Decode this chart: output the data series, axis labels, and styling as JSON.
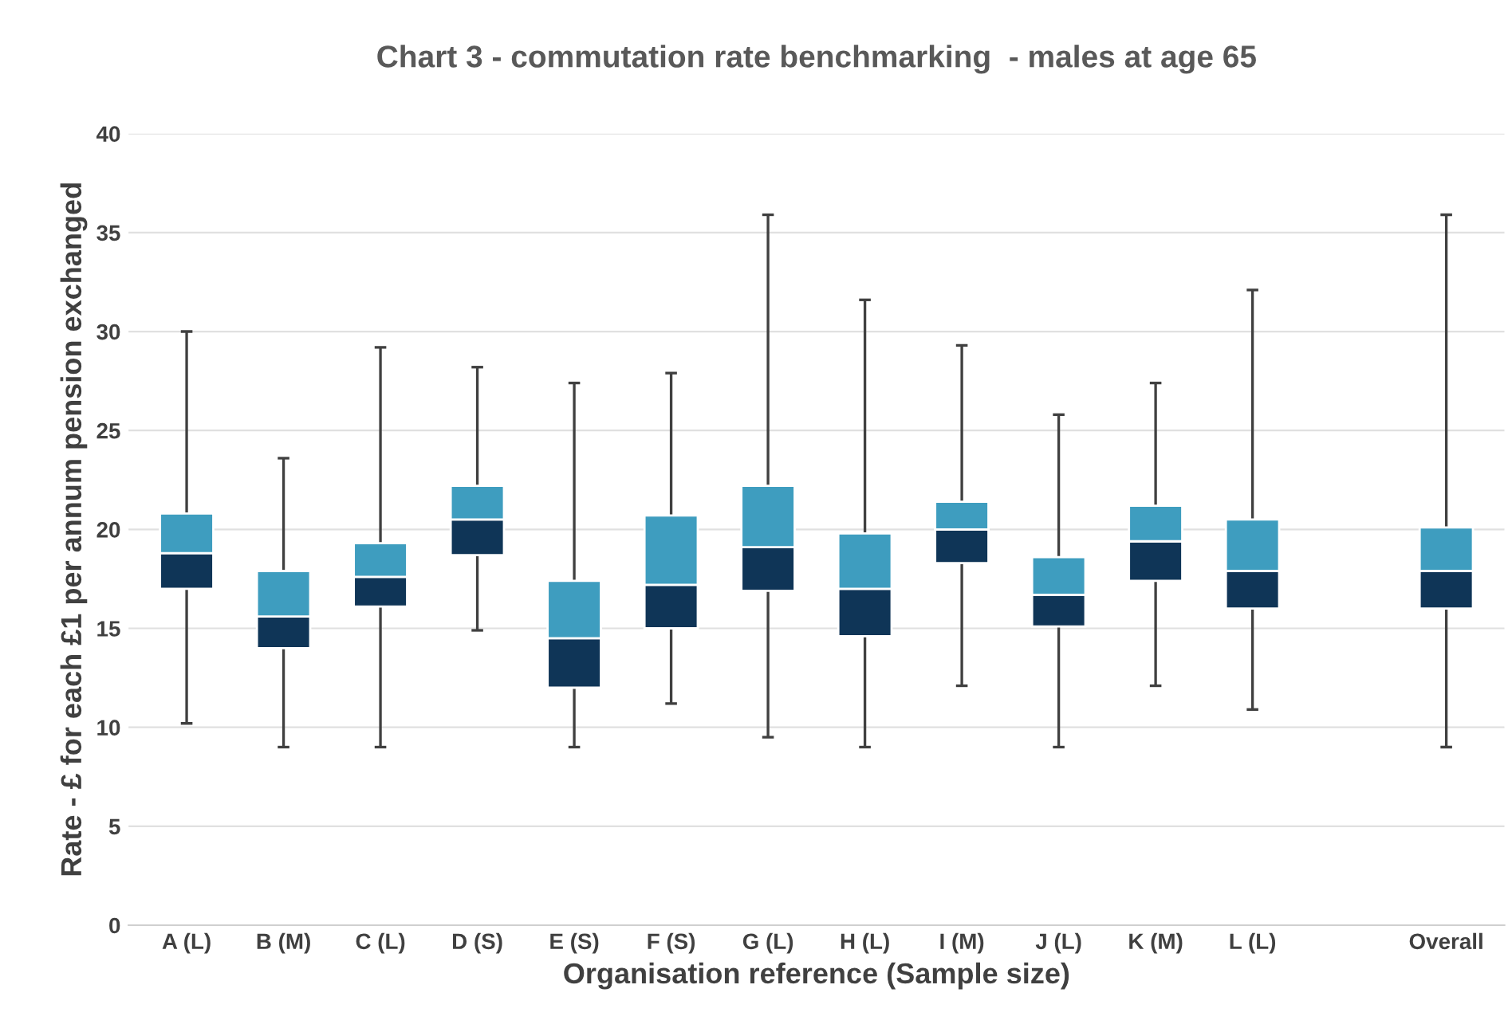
{
  "chart_data": {
    "type": "box",
    "title": "Chart 3 - commutation rate benchmarking  - males at age 65",
    "xlabel": "Organisation reference (Sample size)",
    "ylabel": "Rate - £ for each £1 per annum pension exchanged",
    "categories": [
      "A (L)",
      "B (M)",
      "C (L)",
      "D (S)",
      "E (S)",
      "F (S)",
      "G (L)",
      "H (L)",
      "I (M)",
      "J (L)",
      "K (M)",
      "L (L)",
      null,
      "Overall"
    ],
    "color": "#3e9dbf",
    "colors": [
      "#0f3557",
      "#0f3557",
      "#0f3557",
      "#0f3557",
      "#0f3557",
      "#0f3557",
      "#0f3557",
      "#0f3557",
      "#0f3557",
      "#0f3557",
      "#0f3557",
      "#0f3557",
      null,
      "#0f3557"
    ],
    "boxes": [
      {
        "low": 10.2,
        "q1": 17.0,
        "median": 18.8,
        "q3": 20.8,
        "high": 30.0
      },
      {
        "low": 9.0,
        "q1": 14.0,
        "median": 15.6,
        "q3": 17.9,
        "high": 23.6
      },
      {
        "low": 9.0,
        "q1": 16.1,
        "median": 17.6,
        "q3": 19.3,
        "high": 29.2
      },
      {
        "low": 14.9,
        "q1": 18.7,
        "median": 20.5,
        "q3": 22.2,
        "high": 28.2
      },
      {
        "low": 9.0,
        "q1": 12.0,
        "median": 14.5,
        "q3": 17.4,
        "high": 27.4
      },
      {
        "low": 11.2,
        "q1": 15.0,
        "median": 17.2,
        "q3": 20.7,
        "high": 27.9
      },
      {
        "low": 9.5,
        "q1": 16.9,
        "median": 19.1,
        "q3": 22.2,
        "high": 35.9
      },
      {
        "low": 9.0,
        "q1": 14.6,
        "median": 17.0,
        "q3": 19.8,
        "high": 31.6
      },
      {
        "low": 12.1,
        "q1": 18.3,
        "median": 20.0,
        "q3": 21.4,
        "high": 29.3
      },
      {
        "low": 9.0,
        "q1": 15.1,
        "median": 16.7,
        "q3": 18.6,
        "high": 25.8
      },
      {
        "low": 12.1,
        "q1": 17.4,
        "median": 19.4,
        "q3": 21.2,
        "high": 27.4
      },
      {
        "low": 10.9,
        "q1": 16.0,
        "median": 17.9,
        "q3": 20.5,
        "high": 32.1
      },
      null,
      {
        "low": 9.0,
        "q1": 16.0,
        "median": 17.9,
        "q3": 20.1,
        "high": 35.9
      }
    ],
    "ylim": [
      0,
      40
    ],
    "yticks": [
      0,
      5,
      10,
      15,
      20,
      25,
      30,
      35,
      40
    ],
    "grid": "y"
  }
}
